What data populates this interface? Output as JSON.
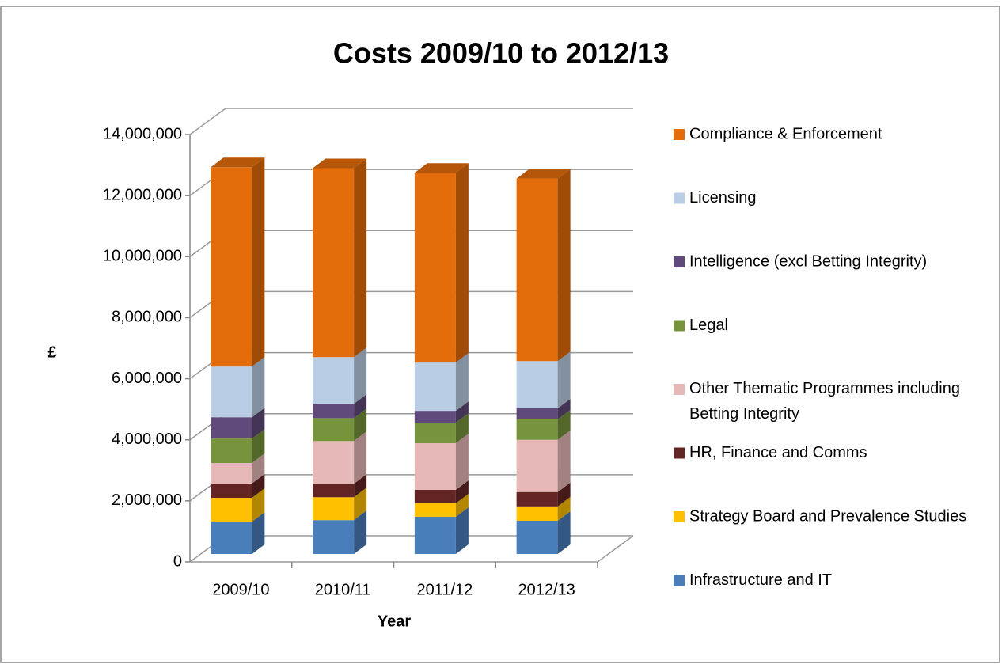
{
  "chart_data": {
    "type": "bar",
    "stacked": true,
    "three_d": true,
    "title": "Costs 2009/10 to 2012/13",
    "x_label": "Year",
    "y_label": "£",
    "categories": [
      "2009/10",
      "2010/11",
      "2011/12",
      "2012/13"
    ],
    "series": [
      {
        "name": "Infrastructure and IT",
        "color": "#4a7ebb",
        "values": [
          1060000,
          1110000,
          1220000,
          1090000
        ]
      },
      {
        "name": "Strategy Board and Prevalence Studies",
        "color": "#ffc000",
        "values": [
          780000,
          750000,
          440000,
          470000
        ]
      },
      {
        "name": "HR, Finance and  Comms",
        "color": "#632523",
        "values": [
          470000,
          440000,
          440000,
          470000
        ]
      },
      {
        "name": "Other Thematic Programmes including Betting Integrity",
        "color": "#e6b9b8",
        "values": [
          670000,
          1400000,
          1530000,
          1710000
        ]
      },
      {
        "name": "Legal",
        "color": "#77933c",
        "values": [
          800000,
          750000,
          670000,
          670000
        ]
      },
      {
        "name": "Intelligence (excl Betting Integrity)",
        "color": "#604a7b",
        "values": [
          700000,
          470000,
          390000,
          360000
        ]
      },
      {
        "name": "Licensing",
        "color": "#b9cde5",
        "values": [
          1660000,
          1530000,
          1580000,
          1550000
        ]
      },
      {
        "name": "Compliance & Enforcement",
        "color": "#e46c0a",
        "values": [
          6530000,
          6190000,
          6220000,
          5980000
        ]
      }
    ],
    "ylim": [
      0,
      14000000
    ],
    "yticks": [
      0,
      {
        "value": 2000000,
        "label": "2,000,000"
      },
      {
        "value": 4000000,
        "label": "4,000,000"
      },
      {
        "value": 6000000,
        "label": "6,000,000"
      },
      {
        "value": 8000000,
        "label": "8,000,000"
      },
      {
        "value": 10000000,
        "label": "10,000,000"
      },
      {
        "value": 12000000,
        "label": "12,000,000"
      },
      {
        "value": 14000000,
        "label": "14,000,000"
      }
    ],
    "grid": true,
    "legend": "right"
  }
}
